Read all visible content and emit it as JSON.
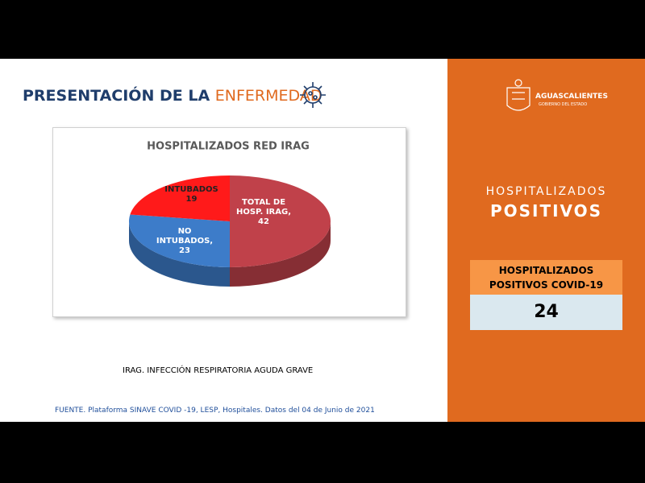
{
  "header": {
    "title_part1": "PRESENTACIÓN DE LA",
    "title_part2": "ENFERMEDAD"
  },
  "chart_data": {
    "type": "pie",
    "title": "HOSPITALIZADOS RED IRAG",
    "categories": [
      "TOTAL DE HOSP. IRAG,",
      "NO INTUBADOS,",
      "INTUBADOS"
    ],
    "values": [
      42,
      23,
      19
    ],
    "colors": [
      "#c0414a",
      "#3d7cc9",
      "#ff1a1a"
    ]
  },
  "footnote": "IRAG. INFECCIÓN RESPIRATORIA AGUDA GRAVE",
  "source": "FUENTE. Plataforma SINAVE COVID -19, LESP, Hospitales. Datos del 04 de Junio de 2021",
  "sidebar": {
    "logo_name": "AGUASCALIENTES",
    "logo_sub": "GOBIERNO DEL ESTADO",
    "heading_line1": "HOSPITALIZADOS",
    "heading_line2": "POSITIVOS",
    "table": {
      "header": [
        "HOSPITALIZADOS",
        "POSITIVOS COVID-19"
      ],
      "value": 24
    }
  }
}
